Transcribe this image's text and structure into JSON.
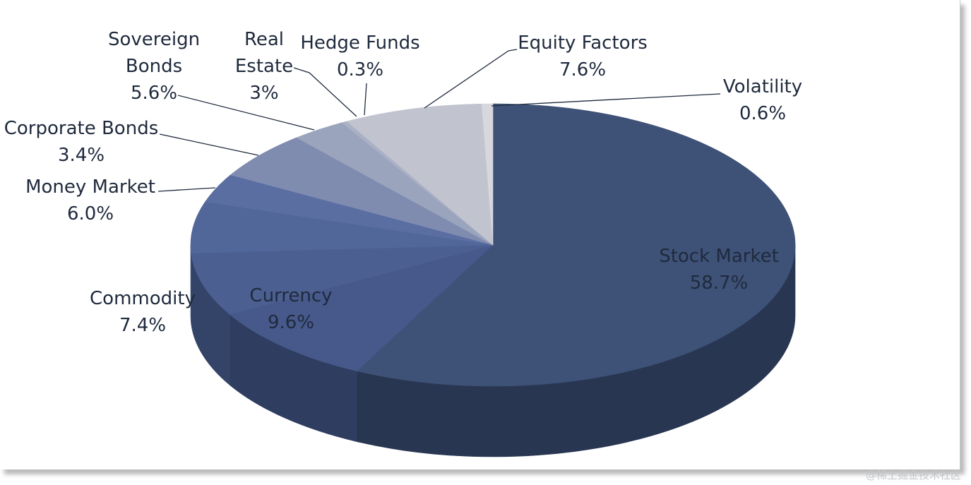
{
  "chart_data": {
    "type": "pie",
    "title": "",
    "style": "3d-pie",
    "legend": "none",
    "slices": [
      {
        "label": "Stock Market",
        "label_lines": [
          "Stock Market"
        ],
        "value": 58.7,
        "pct_text": "58.7%",
        "color": "#3e5177",
        "side_color": "#283652"
      },
      {
        "label": "Currency",
        "label_lines": [
          "Currency"
        ],
        "value": 9.6,
        "pct_text": "9.6%",
        "color": "#46598a",
        "side_color": "#2f3e60"
      },
      {
        "label": "Commodity",
        "label_lines": [
          "Commodity"
        ],
        "value": 7.4,
        "pct_text": "7.4%",
        "color": "#4c5f91",
        "side_color": "#344468"
      },
      {
        "label": "Money Market",
        "label_lines": [
          "Money Market"
        ],
        "value": 6.0,
        "pct_text": "6.0%",
        "color": "#516699",
        "side_color": "#3a4b72"
      },
      {
        "label": "Corporate Bonds",
        "label_lines": [
          "Corporate Bonds"
        ],
        "value": 3.4,
        "pct_text": "3.4%",
        "color": "#5b6ea2",
        "side_color": "#425580"
      },
      {
        "label": "Sovereign Bonds",
        "label_lines": [
          "Sovereign",
          "Bonds"
        ],
        "value": 5.6,
        "pct_text": "5.6%",
        "color": "#7f8cb0",
        "side_color": "#5e6b8e"
      },
      {
        "label": "Real Estate",
        "label_lines": [
          "Real",
          "Estate"
        ],
        "value": 3.0,
        "pct_text": "3%",
        "color": "#9ba4bd",
        "side_color": "#7b849d"
      },
      {
        "label": "Hedge Funds",
        "label_lines": [
          "Hedge Funds"
        ],
        "value": 0.3,
        "pct_text": "0.3%",
        "color": "#aab1c5",
        "side_color": "#8c93a7"
      },
      {
        "label": "Equity Factors",
        "label_lines": [
          "Equity Factors"
        ],
        "value": 7.6,
        "pct_text": "7.6%",
        "color": "#c1c4cf",
        "side_color": "#a2a6b2"
      },
      {
        "label": "Volatility",
        "label_lines": [
          "Volatility"
        ],
        "value": 0.6,
        "pct_text": "0.6%",
        "color": "#d7d8dd",
        "side_color": "#b9bac2"
      }
    ]
  },
  "watermark": "@稀土掘金技术社区"
}
